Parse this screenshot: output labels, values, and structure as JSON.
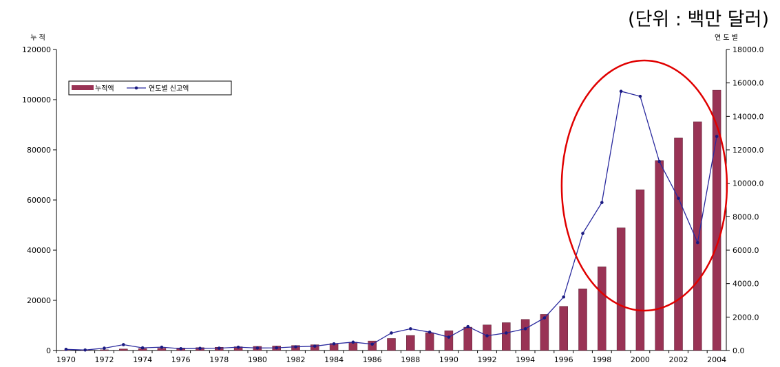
{
  "unit_label": "(단위 : 백만 달러)",
  "chart_data": {
    "type": "bar",
    "left_axis_label": "누 적",
    "right_axis_label": "연 도 별",
    "x": [
      1970,
      1971,
      1972,
      1973,
      1974,
      1975,
      1976,
      1977,
      1978,
      1979,
      1980,
      1981,
      1982,
      1983,
      1984,
      1985,
      1986,
      1987,
      1988,
      1989,
      1990,
      1991,
      1992,
      1993,
      1994,
      1995,
      1996,
      1997,
      1998,
      1999,
      2000,
      2001,
      2002,
      2003,
      2004
    ],
    "x_tick_labels": [
      "1970",
      "1972",
      "1974",
      "1976",
      "1978",
      "1980",
      "1982",
      "1984",
      "1986",
      "1988",
      "1990",
      "1992",
      "1994",
      "1996",
      "1998",
      "2000",
      "2002",
      "2004"
    ],
    "y_left": {
      "ylim": [
        0,
        120000
      ],
      "ticks": [
        "0",
        "20000",
        "40000",
        "60000",
        "80000",
        "100000",
        "120000"
      ]
    },
    "y_right": {
      "ylim": [
        0,
        18000
      ],
      "ticks": [
        "0.0",
        "2000.0",
        "4000.0",
        "6000.0",
        "8000.0",
        "10000.0",
        "12000.0",
        "14000.0",
        "16000.0",
        "18000.0"
      ]
    },
    "series": [
      {
        "name": "누적액",
        "type": "bar",
        "axis": "left",
        "color": "#993355",
        "values": [
          100,
          150,
          300,
          600,
          750,
          900,
          1000,
          1150,
          1300,
          1500,
          1650,
          1800,
          2000,
          2300,
          2800,
          3300,
          3800,
          4800,
          6000,
          7100,
          7900,
          9300,
          10200,
          11100,
          12400,
          14400,
          17600,
          24600,
          33400,
          48900,
          64100,
          75700,
          84700,
          91200,
          103800
        ]
      },
      {
        "name": "연도별 신고액",
        "type": "line",
        "axis": "right",
        "color": "#2a2a9e",
        "values": [
          70,
          30,
          140,
          350,
          160,
          200,
          110,
          130,
          140,
          200,
          150,
          160,
          220,
          260,
          400,
          500,
          380,
          1050,
          1300,
          1100,
          800,
          1430,
          880,
          1050,
          1300,
          1950,
          3200,
          7000,
          8850,
          15500,
          15200,
          11300,
          9100,
          6450,
          12800
        ]
      }
    ],
    "legend": {
      "position": "top-left"
    },
    "grid": false,
    "annotation": {
      "shape": "ellipse",
      "color": "#e00000",
      "covers": [
        1997,
        2003
      ]
    }
  }
}
